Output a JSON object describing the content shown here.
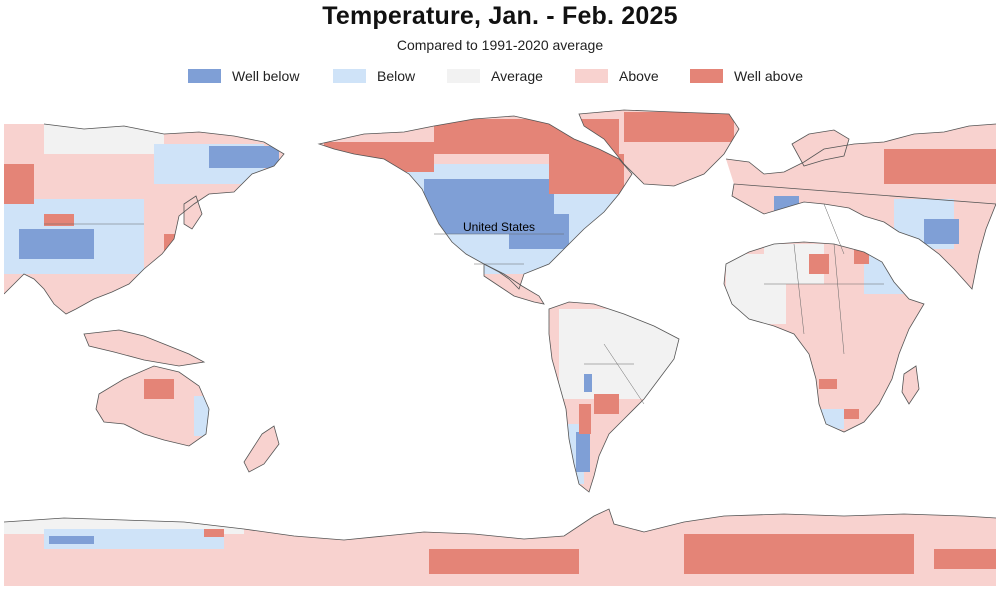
{
  "header": {
    "title": "Temperature, Jan. - Feb. 2025",
    "subtitle": "Compared to 1991-2020 average"
  },
  "legend": [
    {
      "label": "Well below",
      "color": "#7f9fd6"
    },
    {
      "label": "Below",
      "color": "#cfe3f8"
    },
    {
      "label": "Average",
      "color": "#f2f2f2"
    },
    {
      "label": "Above",
      "color": "#f8d2cf"
    },
    {
      "label": "Well above",
      "color": "#e48477"
    }
  ],
  "map": {
    "projection": "equirectangular, Pacific-centered",
    "labels": [
      {
        "name": "United States"
      }
    ],
    "colors": {
      "ocean": "#ffffff",
      "coast": "#555555"
    }
  }
}
